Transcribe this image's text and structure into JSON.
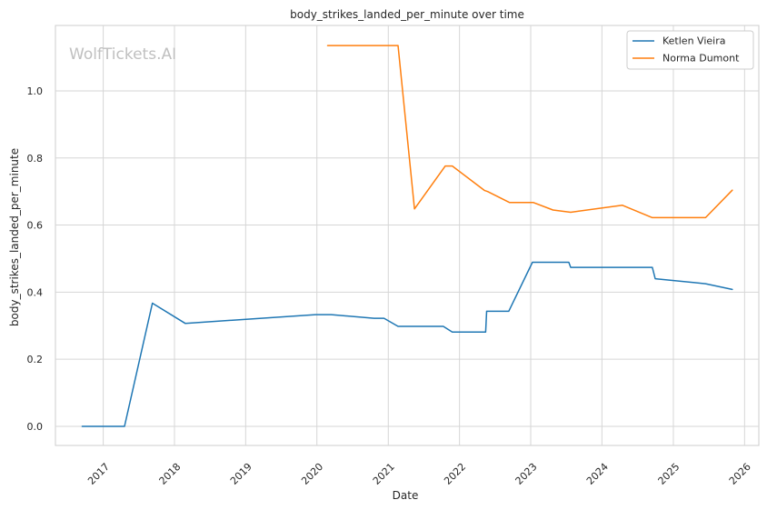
{
  "watermark": "WolfTickets.AI",
  "chart_data": {
    "type": "line",
    "title": "body_strikes_landed_per_minute over time",
    "xlabel": "Date",
    "ylabel": "body_strikes_landed_per_minute",
    "x_ticks": [
      "2017",
      "2018",
      "2019",
      "2020",
      "2021",
      "2022",
      "2023",
      "2024",
      "2025",
      "2026"
    ],
    "y_ticks": [
      "0.0",
      "0.2",
      "0.4",
      "0.6",
      "0.8",
      "1.0"
    ],
    "xlim": [
      "2016-05-01",
      "2026-03-15"
    ],
    "ylim": [
      -0.057,
      1.195
    ],
    "grid": true,
    "legend_position": "top-right",
    "series": [
      {
        "name": "Ketlen Vieira",
        "color": "#1f77b4",
        "points": [
          [
            "2016-09-15",
            0.0
          ],
          [
            "2017-04-20",
            0.0
          ],
          [
            "2017-09-10",
            0.367
          ],
          [
            "2018-02-25",
            0.307
          ],
          [
            "2019-12-25",
            0.333
          ],
          [
            "2020-03-15",
            0.333
          ],
          [
            "2020-10-20",
            0.322
          ],
          [
            "2020-12-10",
            0.322
          ],
          [
            "2021-02-20",
            0.298
          ],
          [
            "2021-10-10",
            0.298
          ],
          [
            "2021-11-25",
            0.281
          ],
          [
            "2022-05-15",
            0.281
          ],
          [
            "2022-05-20",
            0.343
          ],
          [
            "2022-09-10",
            0.343
          ],
          [
            "2023-01-10",
            0.489
          ],
          [
            "2023-07-15",
            0.489
          ],
          [
            "2023-07-25",
            0.474
          ],
          [
            "2024-09-15",
            0.474
          ],
          [
            "2024-09-30",
            0.44
          ],
          [
            "2025-06-15",
            0.425
          ],
          [
            "2025-10-30",
            0.408
          ]
        ]
      },
      {
        "name": "Norma Dumont",
        "color": "#ff7f0e",
        "points": [
          [
            "2020-02-25",
            1.135
          ],
          [
            "2021-02-20",
            1.135
          ],
          [
            "2021-05-15",
            0.648
          ],
          [
            "2021-10-20",
            0.776
          ],
          [
            "2021-11-25",
            0.776
          ],
          [
            "2022-05-10",
            0.703
          ],
          [
            "2022-05-25",
            0.7
          ],
          [
            "2022-09-15",
            0.667
          ],
          [
            "2023-01-15",
            0.667
          ],
          [
            "2023-04-25",
            0.645
          ],
          [
            "2023-07-25",
            0.638
          ],
          [
            "2024-04-15",
            0.659
          ],
          [
            "2024-09-15",
            0.622
          ],
          [
            "2025-06-15",
            0.622
          ],
          [
            "2025-10-30",
            0.704
          ]
        ]
      }
    ]
  }
}
